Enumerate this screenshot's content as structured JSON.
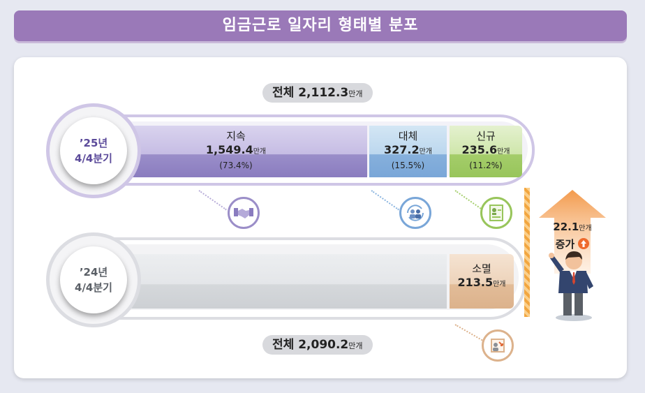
{
  "title": "임금근로 일자리 형태별 분포",
  "total_2025": {
    "label": "전체",
    "value": "2,112.3",
    "unit": "만개"
  },
  "total_2024": {
    "label": "전체",
    "value": "2,090.2",
    "unit": "만개"
  },
  "row_2025": {
    "period_line1": "’25년",
    "period_line2": "4/4분기",
    "segments": [
      {
        "name": "지속",
        "value": "1,549.4",
        "unit": "만개",
        "pct": "(73.4%)",
        "share": 73.4
      },
      {
        "name": "대체",
        "value": "327.2",
        "unit": "만개",
        "pct": "(15.5%)",
        "share": 15.5
      },
      {
        "name": "신규",
        "value": "235.6",
        "unit": "만개",
        "pct": "(11.2%)",
        "share": 11.2
      }
    ]
  },
  "row_2024": {
    "period_line1": "’24년",
    "period_line2": "4/4분기",
    "extinct": {
      "name": "소멸",
      "value": "213.5",
      "unit": "만개"
    }
  },
  "increase": {
    "value": "22.1",
    "unit": "만개",
    "label": "증가"
  },
  "icons": [
    "handshake-icon",
    "person-cycle-icon",
    "new-document-icon",
    "person-exit-icon",
    "up-arrow-icon"
  ],
  "colors": {
    "title": "#9a79b8",
    "continue": "#9b8ec8",
    "replace": "#8ab4df",
    "new": "#a6cf6e",
    "extinct": "#e6c7aa",
    "arrow": "#f39a4c"
  }
}
